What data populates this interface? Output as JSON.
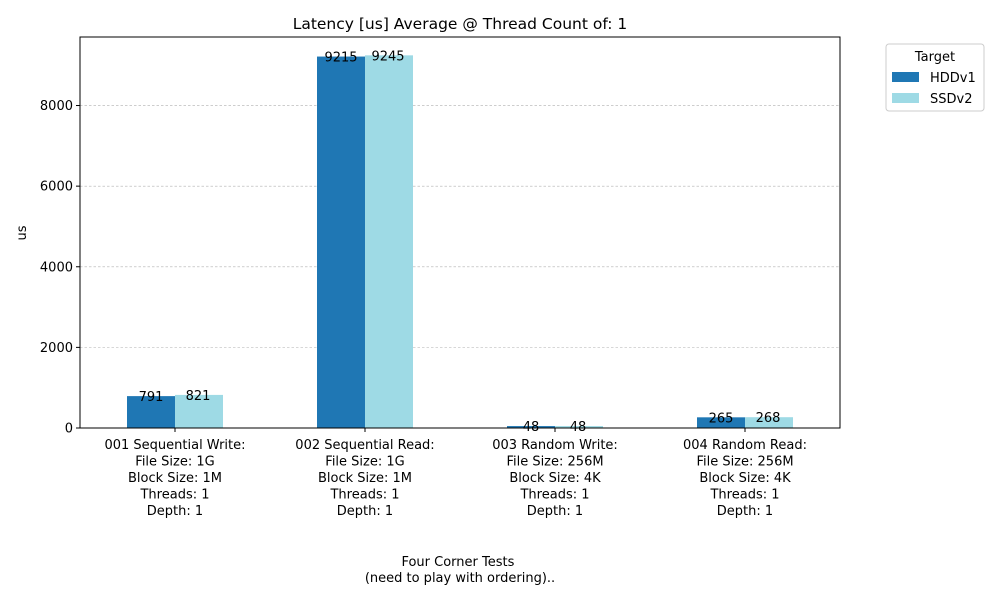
{
  "chart_data": {
    "type": "bar",
    "title": "Latency [us] Average @ Thread Count of: 1",
    "ylabel": "us",
    "xlabel": [
      "Four Corner Tests",
      "(need to play with ordering).."
    ],
    "ylim": [
      0,
      9700
    ],
    "yticks": [
      0,
      2000,
      4000,
      6000,
      8000
    ],
    "grid": "y-dashed",
    "legend": {
      "title": "Target",
      "placement": "outside-top-right"
    },
    "categories": [
      [
        "001 Sequential Write:",
        "File Size: 1G",
        "Block Size: 1M",
        "Threads: 1",
        "Depth: 1"
      ],
      [
        "002 Sequential Read:",
        "File Size: 1G",
        "Block Size: 1M",
        "Threads: 1",
        "Depth: 1"
      ],
      [
        "003 Random Write:",
        "File Size: 256M",
        "Block Size: 4K",
        "Threads: 1",
        "Depth: 1"
      ],
      [
        "004 Random Read:",
        "File Size: 256M",
        "Block Size: 4K",
        "Threads: 1",
        "Depth: 1"
      ]
    ],
    "series": [
      {
        "name": "HDDv1",
        "color": "#1f77b4",
        "values": [
          791,
          9215,
          48,
          265
        ]
      },
      {
        "name": "SSDv2",
        "color": "#9edae5",
        "values": [
          821,
          9245,
          48,
          268
        ]
      }
    ]
  }
}
